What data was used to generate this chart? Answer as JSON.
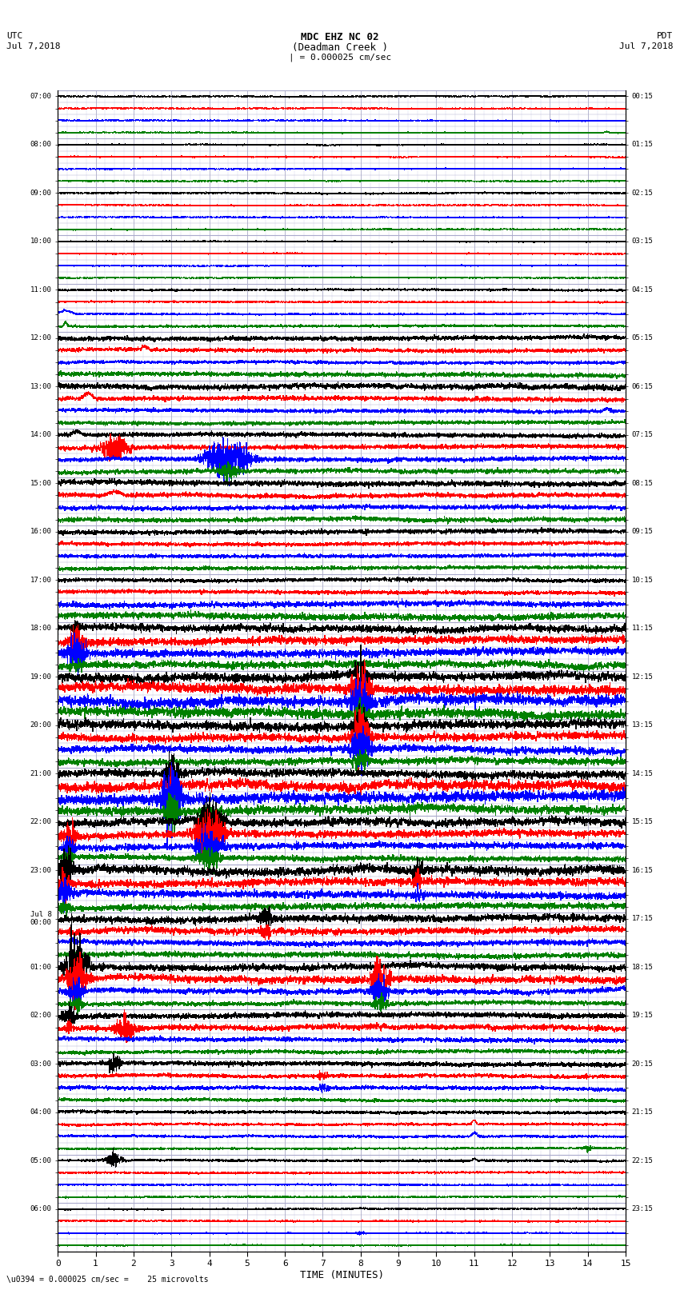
{
  "title_line1": "MDC EHZ NC 02",
  "title_line2": "(Deadman Creek )",
  "title_line3": "| = 0.000025 cm/sec",
  "left_label_top": "UTC",
  "left_label_date": "Jul 7,2018",
  "right_label_top": "PDT",
  "right_label_date": "Jul 7,2018",
  "bottom_label": "TIME (MINUTES)",
  "bottom_note": "\\u0394 = 0.000025 cm/sec =    25 microvolts",
  "xlim": [
    0,
    15
  ],
  "xticks": [
    0,
    1,
    2,
    3,
    4,
    5,
    6,
    7,
    8,
    9,
    10,
    11,
    12,
    13,
    14,
    15
  ],
  "colors_cycle": [
    "black",
    "red",
    "blue",
    "green"
  ],
  "num_traces": 96,
  "fig_width": 8.5,
  "fig_height": 16.13,
  "bg_color": "white",
  "grid_color": "#8888cc",
  "utc_labels": [
    "07:00",
    "",
    "",
    "",
    "08:00",
    "",
    "",
    "",
    "09:00",
    "",
    "",
    "",
    "10:00",
    "",
    "",
    "",
    "11:00",
    "",
    "",
    "",
    "12:00",
    "",
    "",
    "",
    "13:00",
    "",
    "",
    "",
    "14:00",
    "",
    "",
    "",
    "15:00",
    "",
    "",
    "",
    "16:00",
    "",
    "",
    "",
    "17:00",
    "",
    "",
    "",
    "18:00",
    "",
    "",
    "",
    "19:00",
    "",
    "",
    "",
    "20:00",
    "",
    "",
    "",
    "21:00",
    "",
    "",
    "",
    "22:00",
    "",
    "",
    "",
    "23:00",
    "",
    "",
    "",
    "Jul 8\n00:00",
    "",
    "",
    "",
    "01:00",
    "",
    "",
    "",
    "02:00",
    "",
    "",
    "",
    "03:00",
    "",
    "",
    "",
    "04:00",
    "",
    "",
    "",
    "05:00",
    "",
    "",
    "",
    "06:00",
    "",
    "",
    ""
  ],
  "pdt_labels": [
    "00:15",
    "",
    "",
    "",
    "01:15",
    "",
    "",
    "",
    "02:15",
    "",
    "",
    "",
    "03:15",
    "",
    "",
    "",
    "04:15",
    "",
    "",
    "",
    "05:15",
    "",
    "",
    "",
    "06:15",
    "",
    "",
    "",
    "07:15",
    "",
    "",
    "",
    "08:15",
    "",
    "",
    "",
    "09:15",
    "",
    "",
    "",
    "10:15",
    "",
    "",
    "",
    "11:15",
    "",
    "",
    "",
    "12:15",
    "",
    "",
    "",
    "13:15",
    "",
    "",
    "",
    "14:15",
    "",
    "",
    "",
    "15:15",
    "",
    "",
    "",
    "16:15",
    "",
    "",
    "",
    "17:15",
    "",
    "",
    "",
    "18:15",
    "",
    "",
    "",
    "19:15",
    "",
    "",
    "",
    "20:15",
    "",
    "",
    "",
    "21:15",
    "",
    "",
    "",
    "22:15",
    "",
    "",
    "",
    "23:15",
    "",
    "",
    ""
  ],
  "noise_levels": [
    0.03,
    0.03,
    0.03,
    0.03,
    0.03,
    0.03,
    0.03,
    0.03,
    0.04,
    0.03,
    0.03,
    0.03,
    0.03,
    0.03,
    0.03,
    0.03,
    0.05,
    0.04,
    0.04,
    0.06,
    0.12,
    0.1,
    0.08,
    0.12,
    0.15,
    0.12,
    0.1,
    0.1,
    0.12,
    0.12,
    0.12,
    0.12,
    0.15,
    0.12,
    0.12,
    0.12,
    0.12,
    0.1,
    0.1,
    0.1,
    0.1,
    0.1,
    0.15,
    0.18,
    0.2,
    0.22,
    0.22,
    0.2,
    0.25,
    0.28,
    0.3,
    0.28,
    0.25,
    0.22,
    0.2,
    0.18,
    0.22,
    0.28,
    0.3,
    0.25,
    0.22,
    0.2,
    0.18,
    0.15,
    0.25,
    0.22,
    0.2,
    0.18,
    0.2,
    0.18,
    0.15,
    0.15,
    0.18,
    0.2,
    0.15,
    0.12,
    0.15,
    0.15,
    0.12,
    0.1,
    0.12,
    0.1,
    0.1,
    0.08,
    0.08,
    0.06,
    0.06,
    0.05,
    0.06,
    0.05,
    0.04,
    0.04,
    0.04,
    0.04,
    0.03,
    0.03
  ]
}
